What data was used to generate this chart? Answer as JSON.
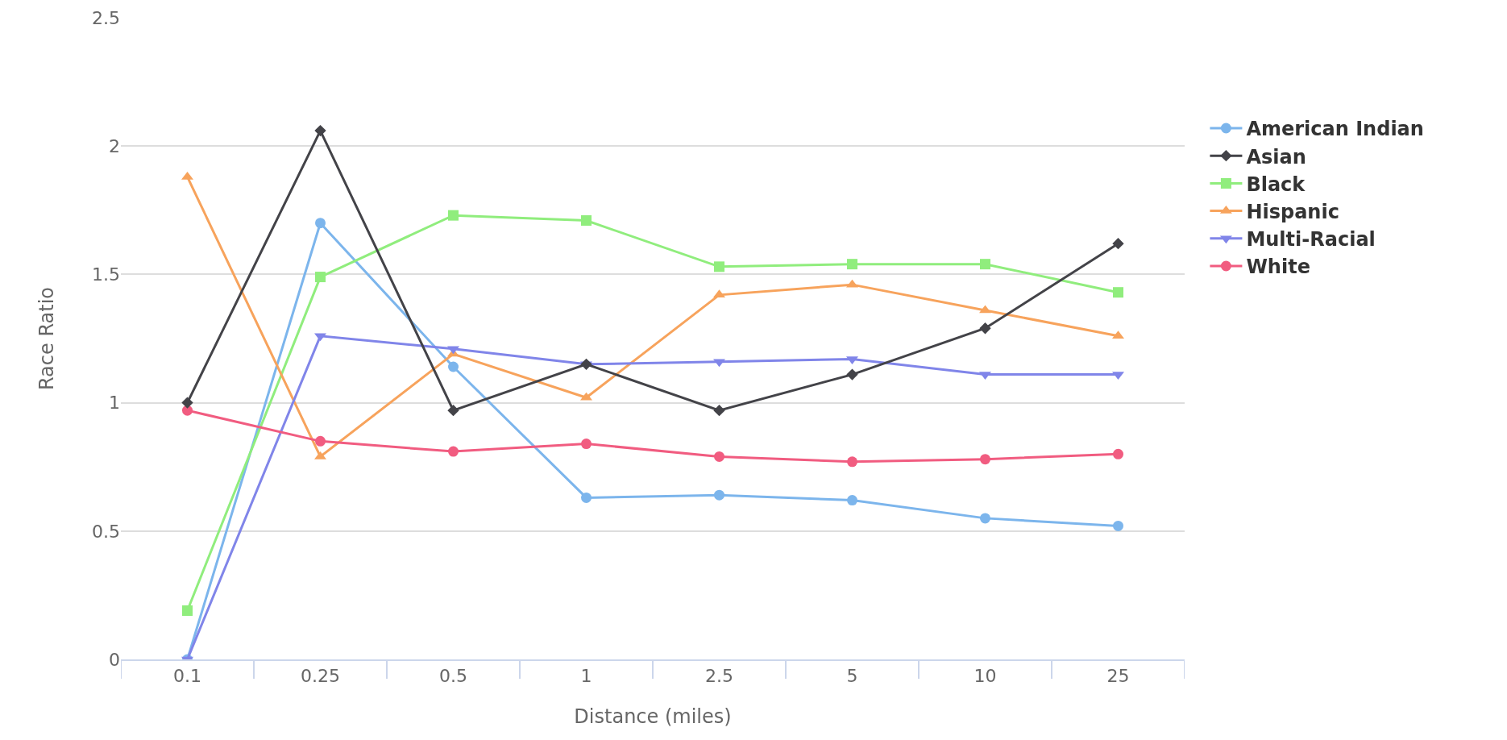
{
  "chart_data": {
    "type": "line",
    "xlabel": "Distance (miles)",
    "ylabel": "Race Ratio",
    "categories": [
      "0.1",
      "0.25",
      "0.5",
      "1",
      "2.5",
      "5",
      "10",
      "25"
    ],
    "series": [
      {
        "name": "American Indian",
        "color": "#7cb5ec",
        "marker": "circle",
        "values": [
          0,
          1.7,
          1.14,
          0.63,
          0.64,
          0.62,
          0.55,
          0.52
        ]
      },
      {
        "name": "Asian",
        "color": "#434348",
        "marker": "diamond",
        "values": [
          1.0,
          2.06,
          0.97,
          1.15,
          0.97,
          1.11,
          1.29,
          1.62
        ]
      },
      {
        "name": "Black",
        "color": "#90ed7d",
        "marker": "square",
        "values": [
          0.19,
          1.49,
          1.73,
          1.71,
          1.53,
          1.54,
          1.54,
          1.43
        ]
      },
      {
        "name": "Hispanic",
        "color": "#f7a35c",
        "marker": "triangle",
        "values": [
          1.88,
          0.79,
          1.19,
          1.02,
          1.42,
          1.46,
          1.36,
          1.26
        ]
      },
      {
        "name": "Multi-Racial",
        "color": "#8085e9",
        "marker": "triangle-down",
        "values": [
          0,
          1.26,
          1.21,
          1.15,
          1.16,
          1.17,
          1.11,
          1.11
        ]
      },
      {
        "name": "White",
        "color": "#f15c80",
        "marker": "circle",
        "values": [
          0.97,
          0.85,
          0.81,
          0.84,
          0.79,
          0.77,
          0.78,
          0.8
        ]
      }
    ],
    "ylim": [
      0,
      2.5
    ],
    "yticks": [
      0,
      0.5,
      1,
      1.5,
      2,
      2.5
    ],
    "grid": "y",
    "legend": "right",
    "line_style": "solid"
  }
}
